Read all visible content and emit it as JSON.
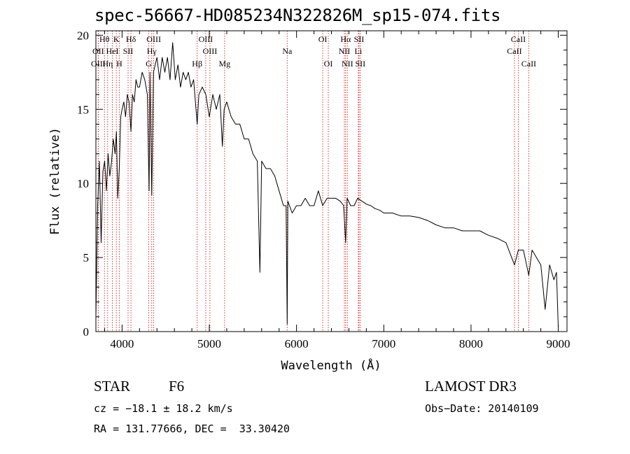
{
  "chart_data": {
    "type": "line",
    "title": "spec-56667-HD085234N322826M_sp15-074.fits",
    "xlabel": "Wavelength (Å)",
    "ylabel": "Flux (relative)",
    "xlim": [
      3700,
      9100
    ],
    "ylim": [
      0,
      20.3
    ],
    "xticks": [
      4000,
      5000,
      6000,
      7000,
      8000,
      9000
    ],
    "yticks": [
      0,
      5,
      10,
      15,
      20
    ],
    "grid": false,
    "series": [
      {
        "x": [
          3700,
          3720,
          3740,
          3760,
          3780,
          3800,
          3820,
          3840,
          3860,
          3880,
          3900,
          3920,
          3935,
          3950,
          3968,
          3985,
          4000,
          4020,
          4040,
          4060,
          4080,
          4102,
          4120,
          4140,
          4160,
          4180,
          4200,
          4230,
          4260,
          4290,
          4310,
          4320,
          4340,
          4360,
          4380,
          4400,
          4430,
          4460,
          4490,
          4520,
          4550,
          4580,
          4610,
          4640,
          4670,
          4700,
          4730,
          4760,
          4790,
          4820,
          4861,
          4880,
          4920,
          4960,
          5000,
          5040,
          5080,
          5120,
          5150,
          5170,
          5200,
          5250,
          5300,
          5350,
          5400,
          5450,
          5500,
          5550,
          5580,
          5600,
          5650,
          5700,
          5750,
          5800,
          5850,
          5880,
          5893,
          5900,
          5950,
          6000,
          6050,
          6100,
          6150,
          6200,
          6250,
          6300,
          6350,
          6400,
          6450,
          6500,
          6540,
          6563,
          6580,
          6620,
          6660,
          6700,
          6750,
          6800,
          6850,
          6900,
          6950,
          7000,
          7100,
          7200,
          7300,
          7400,
          7500,
          7600,
          7700,
          7800,
          7900,
          8000,
          8100,
          8200,
          8300,
          8400,
          8498,
          8542,
          8600,
          8662,
          8700,
          8750,
          8800,
          8850,
          8900,
          8950,
          8980,
          9000
        ],
        "values": [
          1.0,
          8.5,
          11.5,
          6.0,
          10.8,
          11.5,
          9.5,
          12.0,
          10.5,
          11.5,
          13.0,
          12.0,
          13.5,
          9.0,
          11.0,
          14.5,
          15.0,
          15.5,
          14.5,
          16.0,
          15.5,
          13.5,
          16.0,
          15.5,
          17.0,
          16.5,
          16.5,
          17.5,
          17.0,
          16.0,
          9.5,
          17.5,
          9.2,
          17.5,
          18.0,
          18.5,
          17.0,
          18.5,
          17.5,
          18.5,
          17.0,
          19.5,
          17.0,
          18.0,
          16.5,
          17.5,
          17.0,
          17.5,
          16.5,
          17.0,
          14.0,
          16.0,
          16.5,
          16.0,
          14.5,
          16.0,
          15.0,
          16.0,
          12.5,
          15.0,
          15.5,
          14.5,
          14.0,
          14.0,
          13.0,
          13.0,
          12.0,
          11.5,
          4.0,
          11.5,
          11.0,
          11.0,
          10.5,
          9.5,
          8.5,
          8.5,
          0.5,
          8.8,
          8.0,
          8.5,
          8.5,
          9.0,
          8.5,
          8.5,
          9.5,
          8.5,
          9.0,
          9.0,
          9.0,
          8.8,
          8.5,
          6.0,
          9.0,
          8.5,
          8.5,
          9.0,
          8.8,
          8.6,
          8.5,
          8.3,
          8.2,
          8.0,
          8.0,
          7.8,
          7.8,
          7.7,
          7.5,
          7.2,
          7.0,
          7.0,
          6.8,
          6.8,
          6.8,
          6.5,
          6.3,
          6.0,
          4.5,
          5.5,
          5.5,
          3.8,
          5.5,
          5.0,
          4.5,
          1.5,
          4.5,
          3.5,
          4.0,
          0.3
        ]
      }
    ],
    "line_markers": [
      {
        "label": "Hθ",
        "x": 3798,
        "row": 0
      },
      {
        "label": "OII",
        "x": 3727,
        "row": 1
      },
      {
        "label": "OIII",
        "x": 3727,
        "row": 2
      },
      {
        "label": "Hη",
        "x": 3835,
        "row": 2
      },
      {
        "label": "HeI",
        "x": 3889,
        "row": 1
      },
      {
        "label": "K",
        "x": 3934,
        "row": 0
      },
      {
        "label": "SII",
        "x": 4069,
        "row": 1
      },
      {
        "label": "H",
        "x": 3968,
        "row": 2
      },
      {
        "label": "Hδ",
        "x": 4102,
        "row": 0
      },
      {
        "label": "OIII",
        "x": 4363,
        "row": 0
      },
      {
        "label": "Hγ",
        "x": 4340,
        "row": 1
      },
      {
        "label": "G",
        "x": 4305,
        "row": 2
      },
      {
        "label": "OIII",
        "x": 4959,
        "row": 0
      },
      {
        "label": "OIII",
        "x": 5007,
        "row": 1
      },
      {
        "label": "Hβ",
        "x": 4861,
        "row": 2
      },
      {
        "label": "Mg",
        "x": 5175,
        "row": 2
      },
      {
        "label": "Na",
        "x": 5893,
        "row": 1
      },
      {
        "label": "OI",
        "x": 6300,
        "row": 0
      },
      {
        "label": "OI",
        "x": 6364,
        "row": 2
      },
      {
        "label": "Hα",
        "x": 6563,
        "row": 0
      },
      {
        "label": "SII",
        "x": 6716,
        "row": 0
      },
      {
        "label": "NII",
        "x": 6548,
        "row": 1
      },
      {
        "label": "Li",
        "x": 6708,
        "row": 1
      },
      {
        "label": "NII",
        "x": 6583,
        "row": 2
      },
      {
        "label": "SII",
        "x": 6731,
        "row": 2
      },
      {
        "label": "CaII",
        "x": 8542,
        "row": 0
      },
      {
        "label": "CaII",
        "x": 8498,
        "row": 1
      },
      {
        "label": "CaII",
        "x": 8662,
        "row": 2
      }
    ]
  },
  "info": {
    "object_class": "STAR",
    "subclass": "F6",
    "survey": "LAMOST DR3",
    "redshift": "cz = −18.1 ± 18.2 km/s",
    "obs_date": "Obs−Date: 20140109",
    "coords": "RA = 131.77666, DEC =  33.30420"
  },
  "colors": {
    "markers": "#d42020",
    "spectrum": "#000000"
  }
}
